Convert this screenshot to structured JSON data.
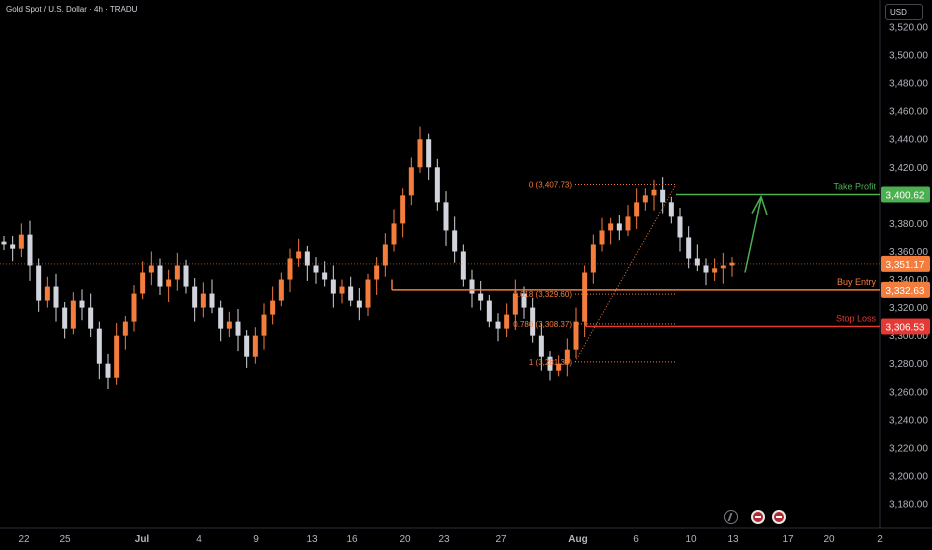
{
  "symbol_line": "Gold Spot / U.S. Dollar · 4h · TRADU",
  "currency": "USD",
  "colors": {
    "up": "#f47c3c",
    "down": "#d1d4dc",
    "fib": "#f47c3c",
    "take_profit": "#4caf50",
    "buy_entry": "#f47c3c",
    "stop_loss": "#e53935",
    "current_price": "#f47c3c"
  },
  "chart_data": {
    "type": "candlestick",
    "y_range": [
      3170,
      3540
    ],
    "y_ticks": [
      "3,520.00",
      "3,500.00",
      "3,480.00",
      "3,460.00",
      "3,440.00",
      "3,420.00",
      "3,400.00",
      "3,380.00",
      "3,360.00",
      "3,340.00",
      "3,320.00",
      "3,300.00",
      "3,280.00",
      "3,260.00",
      "3,240.00",
      "3,220.00",
      "3,200.00",
      "3,180.00"
    ],
    "x_ticks": [
      "22",
      "25",
      "Jul",
      "4",
      "9",
      "13",
      "16",
      "20",
      "23",
      "27",
      "Aug",
      "6",
      "10",
      "13",
      "17",
      "20",
      "2"
    ],
    "price_path": [
      3365,
      3362,
      3372,
      3350,
      3325,
      3335,
      3320,
      3305,
      3325,
      3320,
      3305,
      3280,
      3270,
      3300,
      3310,
      3330,
      3345,
      3350,
      3335,
      3340,
      3350,
      3335,
      3320,
      3330,
      3320,
      3305,
      3310,
      3300,
      3285,
      3300,
      3315,
      3325,
      3340,
      3355,
      3360,
      3350,
      3345,
      3340,
      3330,
      3335,
      3325,
      3320,
      3340,
      3350,
      3365,
      3380,
      3400,
      3420,
      3440,
      3420,
      3395,
      3375,
      3360,
      3340,
      3330,
      3325,
      3310,
      3305,
      3315,
      3330,
      3320,
      3300,
      3285,
      3275,
      3280,
      3290,
      3310,
      3345,
      3365,
      3375,
      3380,
      3375,
      3385,
      3395,
      3400,
      3404,
      3395,
      3385,
      3370,
      3355,
      3350,
      3345,
      3348,
      3350,
      3352
    ],
    "annotations": [
      {
        "label": "Take Profit",
        "price": "3,400.62",
        "value": 3400.62
      },
      {
        "label": "Buy Entry",
        "price": "3,332.63",
        "value": 3332.63
      },
      {
        "label": "Stop Loss",
        "price": "3,306.53",
        "value": 3306.53
      }
    ],
    "current_price": {
      "price": "3,351.17",
      "value": 3351.17
    },
    "fib_levels": [
      {
        "label": "0 (3,407.73)",
        "value": 3407.73
      },
      {
        "label": "0.618 (3,329.60)",
        "value": 3329.6
      },
      {
        "label": "0.786 (3,308.37)",
        "value": 3308.37
      },
      {
        "label": "1 (3,281.32)",
        "value": 3281.32
      }
    ]
  }
}
